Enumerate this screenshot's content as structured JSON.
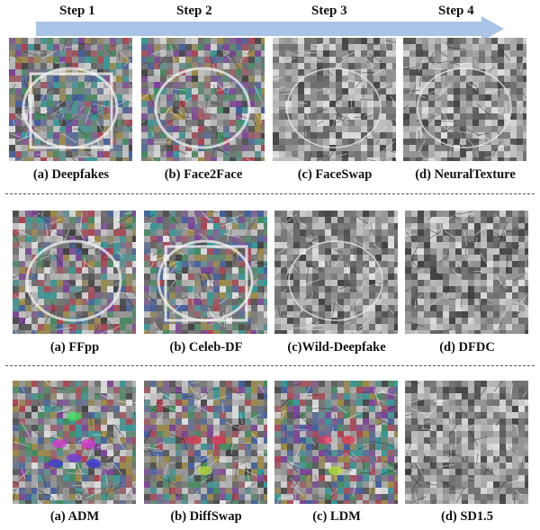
{
  "steps": [
    "Step 1",
    "Step 2",
    "Step 3",
    "Step 4"
  ],
  "arrow_color": "#a9c4e6",
  "rows": [
    {
      "captions": [
        "(a) Deepfakes",
        "(b) Face2Face",
        "(c) FaceSwap",
        "(d) NeuralTexture"
      ]
    },
    {
      "captions": [
        "(a) FFpp",
        "(b) Celeb-DF",
        "(c)Wild-Deepfake",
        "(d) DFDC"
      ]
    },
    {
      "captions": [
        "(a) ADM",
        "(b) DiffSwap",
        "(c) LDM",
        "(d) SD1.5"
      ]
    }
  ]
}
